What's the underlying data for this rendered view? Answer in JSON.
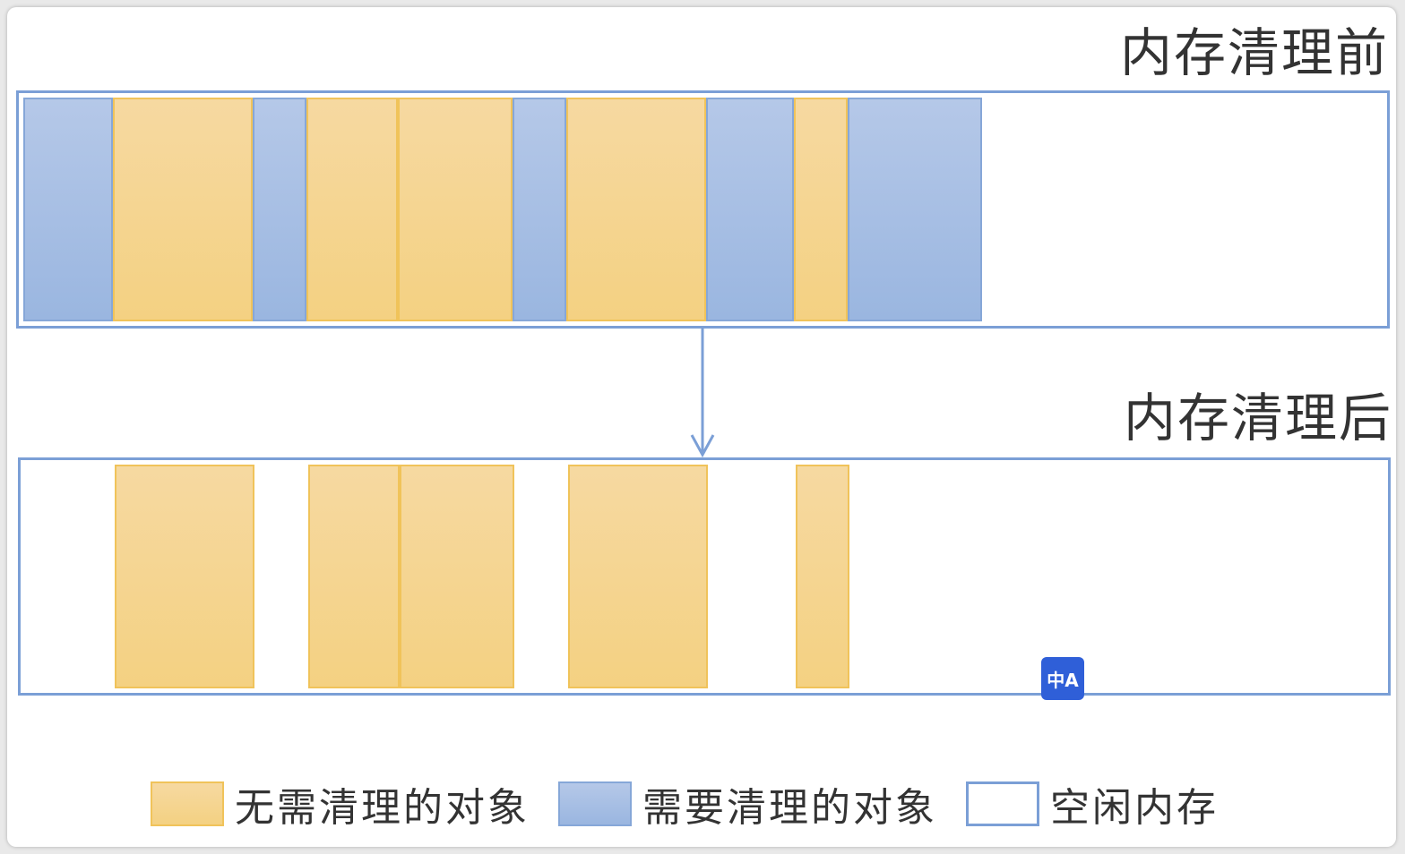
{
  "diagram": {
    "before": {
      "title": "内存清理前",
      "blocks": [
        {
          "type": "clean",
          "start": 0,
          "width": 100
        },
        {
          "type": "keep",
          "start": 100,
          "width": 156
        },
        {
          "type": "clean",
          "start": 256,
          "width": 60
        },
        {
          "type": "keep",
          "start": 316,
          "width": 102
        },
        {
          "type": "keep",
          "start": 418,
          "width": 128
        },
        {
          "type": "clean",
          "start": 546,
          "width": 60
        },
        {
          "type": "keep",
          "start": 606,
          "width": 156
        },
        {
          "type": "clean",
          "start": 762,
          "width": 98
        },
        {
          "type": "keep",
          "start": 860,
          "width": 60
        },
        {
          "type": "clean",
          "start": 920,
          "width": 150
        }
      ]
    },
    "after": {
      "title": "内存清理后",
      "blocks": [
        {
          "type": "keep",
          "start": 100,
          "width": 156
        },
        {
          "type": "keep",
          "start": 316,
          "width": 102
        },
        {
          "type": "keep",
          "start": 418,
          "width": 128
        },
        {
          "type": "keep",
          "start": 606,
          "width": 156
        },
        {
          "type": "keep",
          "start": 860,
          "width": 60
        }
      ]
    },
    "colors": {
      "keep": "#f4d182",
      "clean": "#9ab6e0",
      "border": "#7b9fd6"
    }
  },
  "legend": {
    "keep_label": "无需清理的对象",
    "clean_label": "需要清理的对象",
    "free_label": "空闲内存"
  },
  "translate_button": {
    "label": "中A",
    "icon": "translate-icon"
  }
}
